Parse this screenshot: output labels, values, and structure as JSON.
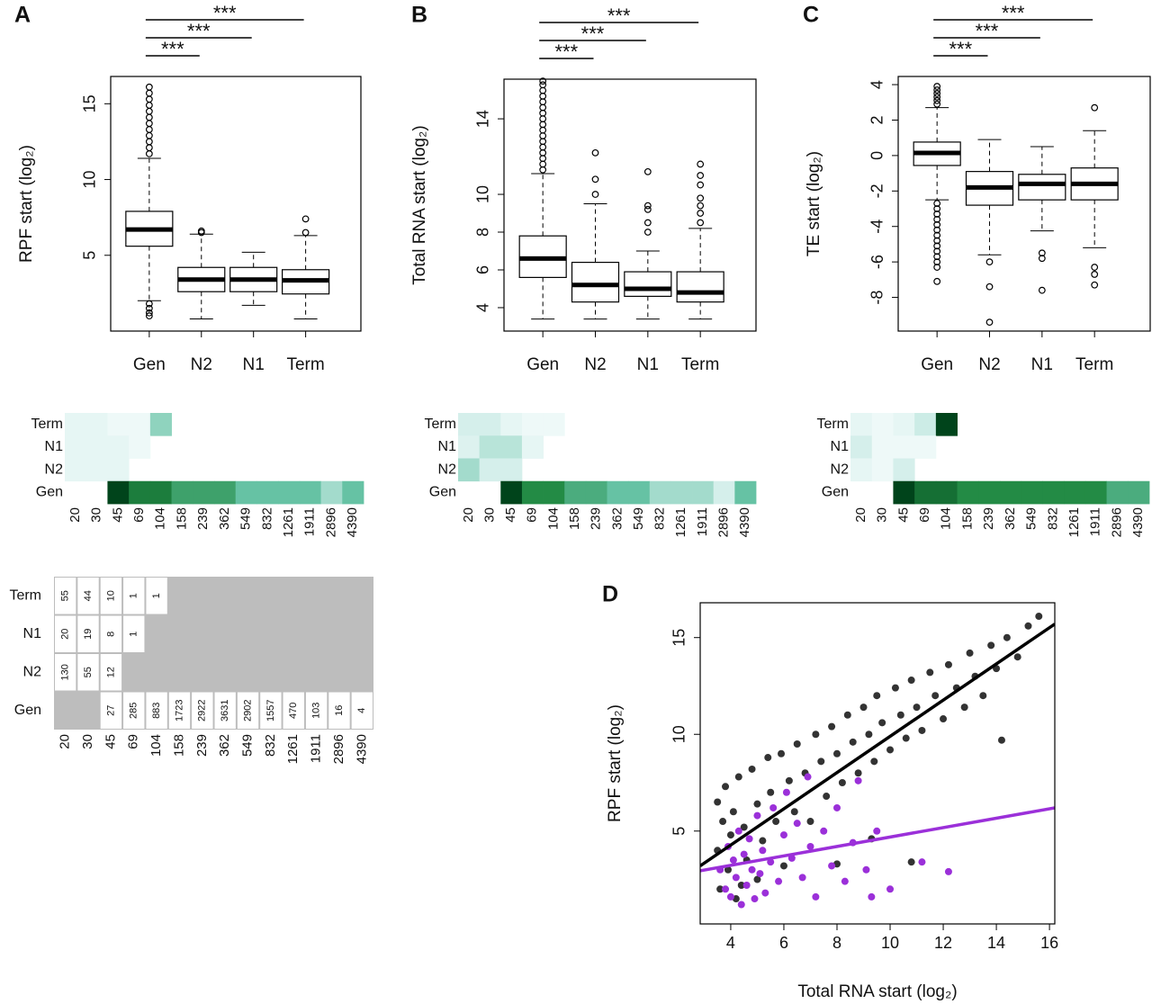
{
  "chart_data": [
    {
      "type": "box",
      "panel": "A",
      "ylabel": "RPF start (log₂)",
      "categories": [
        "Gen",
        "N2",
        "N1",
        "Term"
      ],
      "ylim": [
        0,
        16.8
      ],
      "yticks": [
        5,
        10,
        15
      ],
      "annotations": [
        "***",
        "***",
        "***"
      ],
      "boxes": [
        {
          "whislo": 2.0,
          "q1": 5.6,
          "med": 6.7,
          "q3": 7.9,
          "whishi": 11.4,
          "fliers": [
            11.7,
            12.1,
            12.5,
            12.9,
            13.3,
            13.7,
            14.1,
            14.5,
            14.9,
            15.3,
            15.7,
            16.1,
            1.8,
            1.5,
            1.2,
            1.0
          ]
        },
        {
          "whislo": 0.8,
          "q1": 2.6,
          "med": 3.4,
          "q3": 4.2,
          "whishi": 6.4,
          "fliers": [
            6.5,
            6.6
          ]
        },
        {
          "whislo": 1.7,
          "q1": 2.6,
          "med": 3.4,
          "q3": 4.2,
          "whishi": 5.2,
          "fliers": []
        },
        {
          "whislo": 0.8,
          "q1": 2.45,
          "med": 3.35,
          "q3": 4.05,
          "whishi": 6.3,
          "fliers": [
            6.5,
            7.4
          ]
        }
      ]
    },
    {
      "type": "box",
      "panel": "B",
      "ylabel": "Total RNA start (log₂)",
      "categories": [
        "Gen",
        "N2",
        "N1",
        "Term"
      ],
      "ylim": [
        2.76,
        16.1
      ],
      "yticks": [
        4,
        6,
        8,
        10,
        14
      ],
      "annotations": [
        "***",
        "***",
        "***"
      ],
      "boxes": [
        {
          "whislo": 3.4,
          "q1": 5.6,
          "med": 6.6,
          "q3": 7.8,
          "whishi": 11.1,
          "fliers": [
            11.3,
            11.6,
            11.9,
            12.2,
            12.5,
            12.8,
            13.1,
            13.4,
            13.7,
            14.0,
            14.3,
            14.6,
            14.9,
            15.2,
            15.5,
            15.8,
            16.0
          ]
        },
        {
          "whislo": 3.4,
          "q1": 4.3,
          "med": 5.2,
          "q3": 6.4,
          "whishi": 9.5,
          "fliers": [
            10.0,
            10.8,
            12.2
          ]
        },
        {
          "whislo": 3.4,
          "q1": 4.6,
          "med": 5.0,
          "q3": 5.9,
          "whishi": 7.0,
          "fliers": [
            8.0,
            8.5,
            9.2,
            9.4,
            11.2
          ]
        },
        {
          "whislo": 3.4,
          "q1": 4.3,
          "med": 4.8,
          "q3": 5.9,
          "whishi": 8.2,
          "fliers": [
            8.5,
            9.0,
            9.4,
            9.8,
            10.5,
            11.0,
            11.6
          ]
        }
      ]
    },
    {
      "type": "box",
      "panel": "C",
      "ylabel": "TE start (log₂)",
      "categories": [
        "Gen",
        "N2",
        "N1",
        "Term"
      ],
      "ylim": [
        -9.9,
        4.46
      ],
      "yticks": [
        -8,
        -6,
        -4,
        -2,
        0,
        2,
        4
      ],
      "annotations": [
        "***",
        "***",
        "***"
      ],
      "boxes": [
        {
          "whislo": -2.5,
          "q1": -0.56,
          "med": 0.15,
          "q3": 0.76,
          "whishi": 2.7,
          "fliers": [
            2.9,
            3.1,
            3.3,
            3.5,
            3.7,
            3.9,
            -2.7,
            -3.0,
            -3.3,
            -3.6,
            -3.9,
            -4.2,
            -4.5,
            -4.8,
            -5.1,
            -5.4,
            -5.7,
            -6.0,
            -6.3,
            -7.1
          ]
        },
        {
          "whislo": -5.6,
          "q1": -2.8,
          "med": -1.8,
          "q3": -0.9,
          "whishi": 0.9,
          "fliers": [
            -6.0,
            -7.4,
            -9.4
          ]
        },
        {
          "whislo": -4.25,
          "q1": -2.5,
          "med": -1.6,
          "q3": -1.06,
          "whishi": 0.5,
          "fliers": [
            -5.5,
            -5.8,
            -7.6
          ]
        },
        {
          "whislo": -5.2,
          "q1": -2.5,
          "med": -1.6,
          "q3": -0.7,
          "whishi": 1.4,
          "fliers": [
            2.7,
            -6.3,
            -6.7,
            -7.3
          ]
        }
      ]
    },
    {
      "type": "heatmap",
      "rows": [
        "Term",
        "N1",
        "N2",
        "Gen"
      ],
      "columns": [
        "20",
        "30",
        "45",
        "69",
        "104",
        "158",
        "239",
        "362",
        "549",
        "832",
        "1261",
        "1911",
        "2896",
        "4390"
      ],
      "clim": [
        0,
        1
      ],
      "colors": [
        "#f7fcfd",
        "#ccece6",
        "#66c2a4",
        "#238b45",
        "#00441b"
      ],
      "values": [
        [
          0.1,
          0.1,
          0.05,
          0.05,
          0.4,
          null,
          null,
          null,
          null,
          null,
          null,
          null,
          null,
          null
        ],
        [
          0.1,
          0.1,
          0.1,
          0.05,
          null,
          null,
          null,
          null,
          null,
          null,
          null,
          null,
          null,
          null
        ],
        [
          0.1,
          0.1,
          0.1,
          null,
          null,
          null,
          null,
          null,
          null,
          null,
          null,
          null,
          null,
          null
        ],
        [
          null,
          null,
          1.0,
          0.8,
          0.8,
          0.65,
          0.65,
          0.65,
          0.5,
          0.5,
          0.5,
          0.5,
          0.35,
          0.5
        ]
      ]
    },
    {
      "type": "heatmap",
      "rows": [
        "Term",
        "N1",
        "N2",
        "Gen"
      ],
      "columns": [
        "20",
        "30",
        "45",
        "69",
        "104",
        "158",
        "239",
        "362",
        "549",
        "832",
        "1261",
        "1911",
        "2896",
        "4390"
      ],
      "clim": [
        0,
        1
      ],
      "colors": [
        "#f7fcfd",
        "#ccece6",
        "#66c2a4",
        "#238b45",
        "#00441b"
      ],
      "values": [
        [
          0.2,
          0.2,
          0.1,
          0.05,
          0.05,
          null,
          null,
          null,
          null,
          null,
          null,
          null,
          null,
          null
        ],
        [
          0.15,
          0.3,
          0.3,
          0.1,
          null,
          null,
          null,
          null,
          null,
          null,
          null,
          null,
          null,
          null
        ],
        [
          0.35,
          0.2,
          0.2,
          null,
          null,
          null,
          null,
          null,
          null,
          null,
          null,
          null,
          null,
          null
        ],
        [
          null,
          null,
          1.0,
          0.75,
          0.75,
          0.6,
          0.6,
          0.5,
          0.5,
          0.35,
          0.35,
          0.35,
          0.2,
          0.5
        ]
      ]
    },
    {
      "type": "heatmap",
      "rows": [
        "Term",
        "N1",
        "N2",
        "Gen"
      ],
      "columns": [
        "20",
        "30",
        "45",
        "69",
        "104",
        "158",
        "239",
        "362",
        "549",
        "832",
        "1261",
        "1911",
        "2896",
        "4390"
      ],
      "clim": [
        0,
        1
      ],
      "colors": [
        "#f7fcfd",
        "#ccece6",
        "#66c2a4",
        "#238b45",
        "#00441b"
      ],
      "values": [
        [
          0.1,
          0.05,
          0.1,
          0.25,
          1.0,
          null,
          null,
          null,
          null,
          null,
          null,
          null,
          null,
          null
        ],
        [
          0.2,
          0.05,
          0.05,
          0.05,
          null,
          null,
          null,
          null,
          null,
          null,
          null,
          null,
          null,
          null
        ],
        [
          0.1,
          0.05,
          0.2,
          null,
          null,
          null,
          null,
          null,
          null,
          null,
          null,
          null,
          null,
          null
        ],
        [
          null,
          null,
          1.0,
          0.85,
          0.85,
          0.75,
          0.75,
          0.75,
          0.75,
          0.75,
          0.75,
          0.75,
          0.6,
          0.6
        ]
      ]
    },
    {
      "type": "count-grid",
      "rows": [
        "Term",
        "N1",
        "N2",
        "Gen"
      ],
      "columns": [
        "20",
        "30",
        "45",
        "69",
        "104",
        "158",
        "239",
        "362",
        "549",
        "832",
        "1261",
        "1911",
        "2896",
        "4390"
      ],
      "values": [
        [
          55,
          44,
          10,
          1,
          1,
          null,
          null,
          null,
          null,
          null,
          null,
          null,
          null,
          null
        ],
        [
          20,
          19,
          8,
          1,
          null,
          null,
          null,
          null,
          null,
          null,
          null,
          null,
          null,
          null
        ],
        [
          130,
          55,
          12,
          null,
          null,
          null,
          null,
          null,
          null,
          null,
          null,
          null,
          null,
          null
        ],
        [
          null,
          null,
          27,
          285,
          883,
          1723,
          2922,
          3631,
          2902,
          1557,
          470,
          103,
          16,
          4
        ]
      ]
    },
    {
      "type": "scatter",
      "panel": "D",
      "xlabel": "Total RNA start (log₂)",
      "ylabel": "RPF start (log₂)",
      "xlim": [
        2.85,
        16.2
      ],
      "ylim": [
        0.2,
        16.8
      ],
      "xticks": [
        4,
        6,
        8,
        10,
        12,
        14,
        16
      ],
      "yticks": [
        5,
        10,
        15
      ],
      "series": [
        {
          "color": "#333333",
          "x": [
            3.5,
            3.5,
            3.6,
            3.7,
            3.8,
            3.9,
            4.0,
            4.1,
            4.2,
            4.3,
            4.5,
            4.6,
            4.8,
            5.0,
            5.0,
            5.2,
            5.4,
            5.5,
            5.7,
            5.9,
            6.0,
            6.2,
            6.4,
            6.5,
            6.8,
            7.0,
            7.2,
            7.4,
            7.6,
            7.8,
            8.0,
            8.2,
            8.4,
            8.6,
            8.8,
            9.0,
            9.2,
            9.4,
            9.5,
            9.7,
            10.0,
            10.2,
            10.4,
            10.6,
            10.8,
            11.0,
            11.2,
            11.5,
            11.7,
            12.0,
            12.2,
            12.5,
            12.8,
            13.0,
            13.2,
            13.5,
            13.8,
            14.0,
            14.2,
            14.4,
            14.8,
            15.2,
            15.6,
            4.4,
            9.3,
            8.0,
            10.8
          ],
          "y": [
            4.0,
            6.5,
            2.0,
            5.5,
            7.3,
            3.0,
            4.8,
            6.0,
            1.5,
            7.8,
            5.2,
            3.5,
            8.2,
            6.4,
            2.5,
            4.5,
            8.8,
            7.0,
            5.5,
            9.0,
            3.2,
            7.6,
            6.0,
            9.5,
            8.0,
            5.5,
            10.0,
            8.6,
            6.8,
            10.4,
            9.0,
            7.5,
            11.0,
            9.6,
            8.0,
            11.4,
            10.0,
            8.6,
            12.0,
            10.6,
            9.2,
            12.4,
            11.0,
            9.8,
            12.8,
            11.4,
            10.2,
            13.2,
            12.0,
            10.8,
            13.6,
            12.4,
            11.4,
            14.2,
            13.0,
            12.0,
            14.6,
            13.4,
            9.7,
            15.0,
            14.0,
            15.6,
            16.1,
            2.2,
            4.6,
            3.3,
            3.4
          ]
        },
        {
          "color": "#9b30d9",
          "x": [
            3.6,
            3.8,
            3.9,
            4.0,
            4.1,
            4.2,
            4.3,
            4.4,
            4.5,
            4.6,
            4.7,
            4.8,
            4.9,
            5.0,
            5.1,
            5.2,
            5.3,
            5.5,
            5.6,
            5.8,
            6.0,
            6.1,
            6.3,
            6.5,
            6.7,
            6.9,
            7.0,
            7.2,
            7.5,
            7.8,
            8.0,
            8.3,
            8.6,
            8.8,
            9.1,
            9.3,
            9.5,
            11.2,
            12.2,
            10.0
          ],
          "y": [
            3.0,
            2.0,
            4.2,
            1.6,
            3.5,
            2.6,
            5.0,
            1.2,
            3.8,
            2.2,
            4.6,
            3.0,
            1.5,
            5.8,
            2.8,
            4.0,
            1.8,
            3.4,
            6.2,
            2.4,
            4.8,
            7.0,
            3.6,
            5.4,
            2.6,
            7.8,
            4.2,
            1.6,
            5.0,
            3.2,
            6.2,
            2.4,
            4.4,
            7.6,
            3.0,
            1.6,
            5.0,
            3.4,
            2.9,
            2.0
          ]
        }
      ],
      "lines": [
        {
          "color": "#000000",
          "x": [
            2.85,
            16.2
          ],
          "y": [
            3.2,
            15.7
          ]
        },
        {
          "color": "#9b30d9",
          "x": [
            2.85,
            16.2
          ],
          "y": [
            2.95,
            6.2
          ]
        }
      ]
    }
  ]
}
